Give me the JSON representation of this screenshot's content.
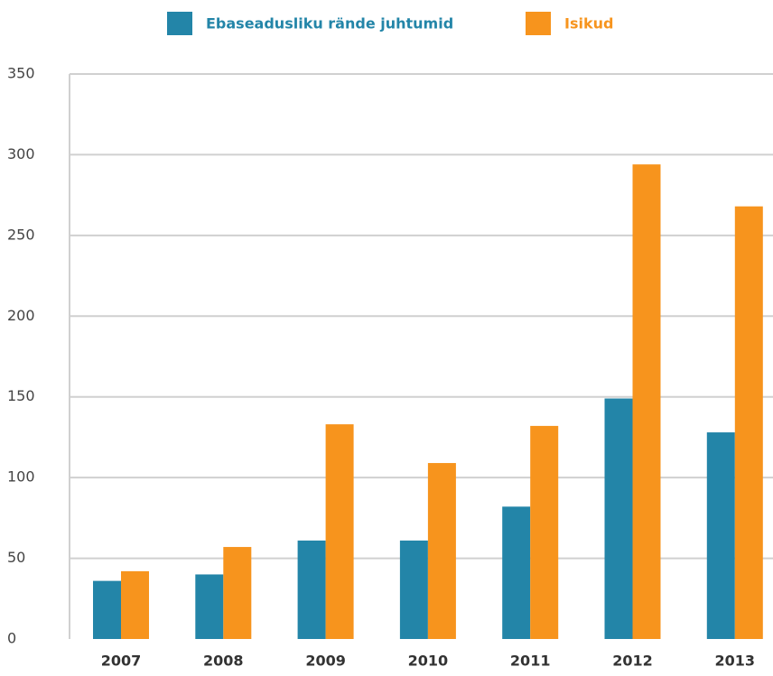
{
  "chart_data": {
    "type": "bar",
    "categories": [
      "2007",
      "2008",
      "2009",
      "2010",
      "2011",
      "2012",
      "2013"
    ],
    "series": [
      {
        "name": "Ebaseadusliku rände juhtumid",
        "color": "#2385a8",
        "values": [
          36,
          40,
          61,
          61,
          82,
          149,
          128
        ]
      },
      {
        "name": "Isikud",
        "color": "#f7941d",
        "values": [
          42,
          57,
          133,
          109,
          132,
          294,
          268
        ]
      }
    ],
    "ylim": [
      0,
      350
    ],
    "yticks": [
      0,
      50,
      100,
      150,
      200,
      250,
      300,
      350
    ],
    "grid": true,
    "legend": "top"
  }
}
